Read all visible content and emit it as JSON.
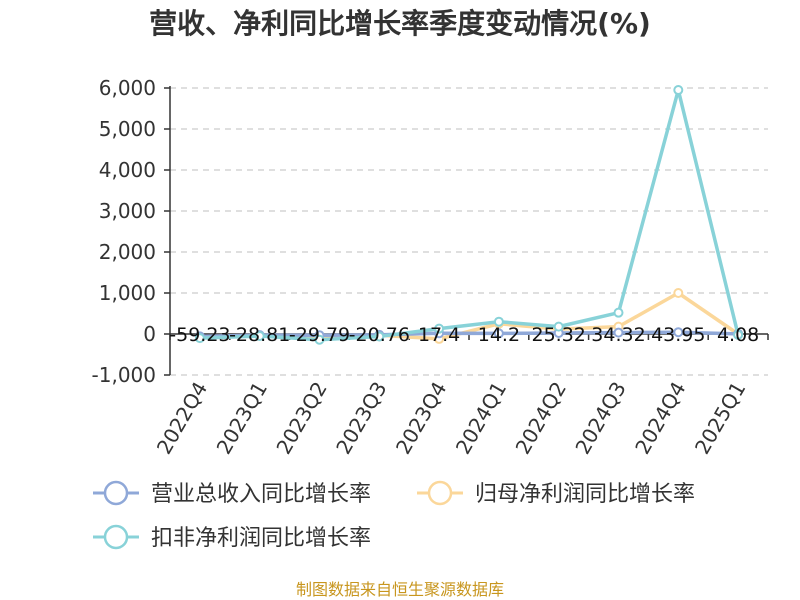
{
  "colors": {
    "revenue": "#8fa8d8",
    "net_profit": "#fbd79a",
    "deducted": "#88d2d8",
    "source": "#c8961e"
  },
  "source_text": "制图数据来自恒生聚源数据库",
  "chart_data": {
    "type": "line",
    "title": "营收、净利同比增长率季度变动情况(%)",
    "xlabel": "",
    "ylabel": "",
    "categories": [
      "2022Q4",
      "2023Q1",
      "2023Q2",
      "2023Q3",
      "2023Q4",
      "2024Q1",
      "2024Q2",
      "2024Q3",
      "2024Q4",
      "2025Q1"
    ],
    "ylim": [
      -1000,
      6000
    ],
    "yticks": [
      -1000,
      0,
      1000,
      2000,
      3000,
      4000,
      5000,
      6000
    ],
    "ytick_labels": [
      "-1,000",
      "0",
      "1,000",
      "2,000",
      "3,000",
      "4,000",
      "5,000",
      "6,000"
    ],
    "grid": true,
    "legend_position": "bottom-left",
    "series": [
      {
        "name": "营业总收入同比增长率",
        "color_key": "revenue",
        "values": [
          -59.23,
          -28.81,
          -29.79,
          -20.76,
          17.4,
          14.2,
          25.32,
          34.32,
          43.95,
          4.08
        ],
        "labels": [
          "-59.23",
          "-28.81",
          "-29.79",
          "-20.76",
          "17.4",
          "14.2",
          "25.32",
          "34.32",
          "43.95",
          "4.08"
        ]
      },
      {
        "name": "归母净利润同比增长率",
        "color_key": "net_profit",
        "values": [
          -90,
          -40,
          -60,
          -30,
          -120,
          250,
          120,
          180,
          1000,
          0
        ]
      },
      {
        "name": "扣非净利润同比增长率",
        "color_key": "deducted",
        "values": [
          -100,
          -50,
          -140,
          -60,
          130,
          300,
          180,
          520,
          5950,
          -20
        ]
      }
    ]
  }
}
